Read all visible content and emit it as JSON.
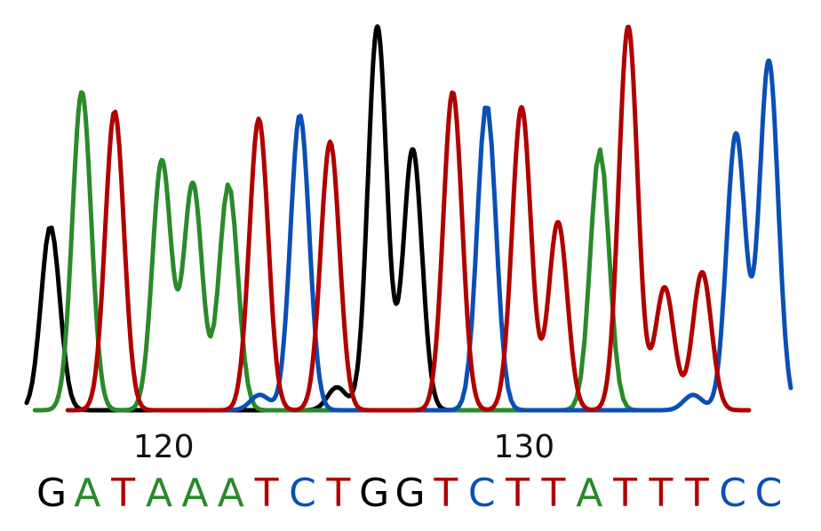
{
  "chart_data": {
    "type": "chromatogram",
    "xlim": [
      116.2,
      137.4
    ],
    "xticks": [
      120,
      130
    ],
    "ylim": [
      0,
      100
    ],
    "series": [
      {
        "color": "#000000",
        "x": [
          116.86,
          124.81,
          125.93,
          126.91
        ],
        "values": [
          48,
          6,
          100,
          68
        ]
      },
      {
        "color": "#2a8a2a",
        "x": [
          117.73,
          119.95,
          120.81,
          121.8,
          132.1
        ],
        "values": [
          83,
          65,
          59,
          59,
          68
        ]
      },
      {
        "color": "#0a4fb5",
        "x": [
          122.67,
          123.78,
          128.96,
          134.69,
          135.88,
          136.79
        ],
        "values": [
          4,
          77,
          80,
          4,
          72,
          91
        ]
      },
      {
        "color": "#b00000",
        "x": [
          118.64,
          122.64,
          124.62,
          128.02,
          129.93,
          130.94,
          132.89,
          133.9,
          134.94
        ],
        "values": [
          78,
          76,
          70,
          83,
          79,
          49,
          100,
          32,
          36
        ]
      }
    ],
    "calls": [
      {
        "base": "G",
        "color": "#000000"
      },
      {
        "base": "A",
        "color": "#2a8a2a"
      },
      {
        "base": "T",
        "color": "#b00000"
      },
      {
        "base": "A",
        "color": "#2a8a2a"
      },
      {
        "base": "A",
        "color": "#2a8a2a"
      },
      {
        "base": "A",
        "color": "#2a8a2a"
      },
      {
        "base": "T",
        "color": "#b00000"
      },
      {
        "base": "C",
        "color": "#0a4fb5"
      },
      {
        "base": "T",
        "color": "#b00000"
      },
      {
        "base": "G",
        "color": "#000000"
      },
      {
        "base": "G",
        "color": "#000000"
      },
      {
        "base": "T",
        "color": "#b00000"
      },
      {
        "base": "C",
        "color": "#0a4fb5"
      },
      {
        "base": "T",
        "color": "#b00000"
      },
      {
        "base": "T",
        "color": "#b00000"
      },
      {
        "base": "A",
        "color": "#2a8a2a"
      },
      {
        "base": "T",
        "color": "#b00000"
      },
      {
        "base": "T",
        "color": "#b00000"
      },
      {
        "base": "T",
        "color": "#b00000"
      },
      {
        "base": "C",
        "color": "#0a4fb5"
      },
      {
        "base": "C",
        "color": "#0a4fb5"
      }
    ]
  }
}
